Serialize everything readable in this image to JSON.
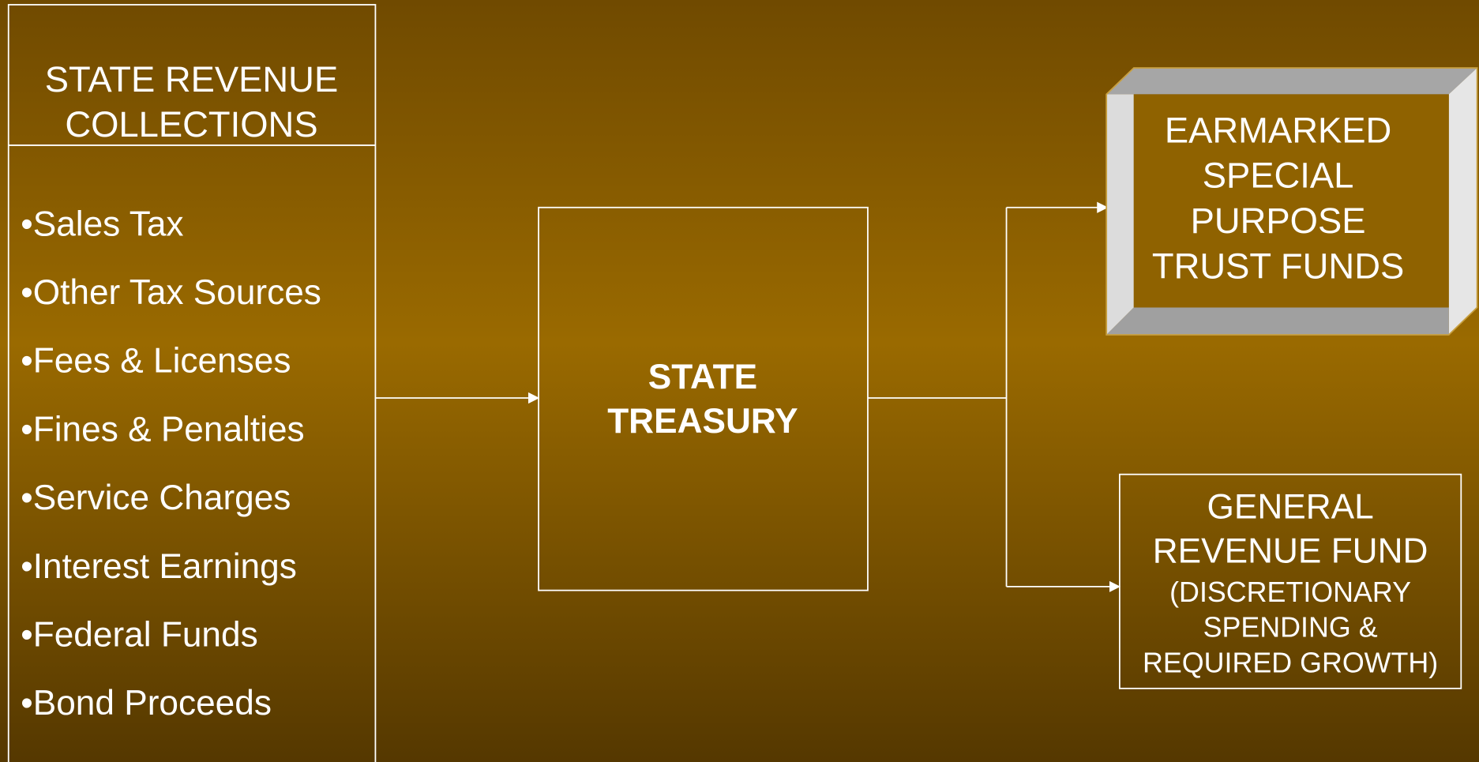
{
  "source": {
    "title": [
      "STATE REVENUE",
      "COLLECTIONS"
    ],
    "items": [
      "•Sales Tax",
      "•Other Tax Sources",
      "•Fees & Licenses",
      "•Fines & Penalties",
      "•Service Charges",
      "•Interest Earnings",
      "•Federal Funds",
      "•Bond Proceeds"
    ]
  },
  "treasury": {
    "label": [
      "STATE",
      "TREASURY"
    ]
  },
  "earmarked": {
    "label": [
      "EARMARKED",
      "SPECIAL",
      "PURPOSE",
      "TRUST FUNDS"
    ]
  },
  "general": {
    "label": [
      "GENERAL",
      "REVENUE FUND"
    ],
    "note": [
      "(DISCRETIONARY",
      "SPENDING &",
      "REQUIRED GROWTH)"
    ]
  }
}
